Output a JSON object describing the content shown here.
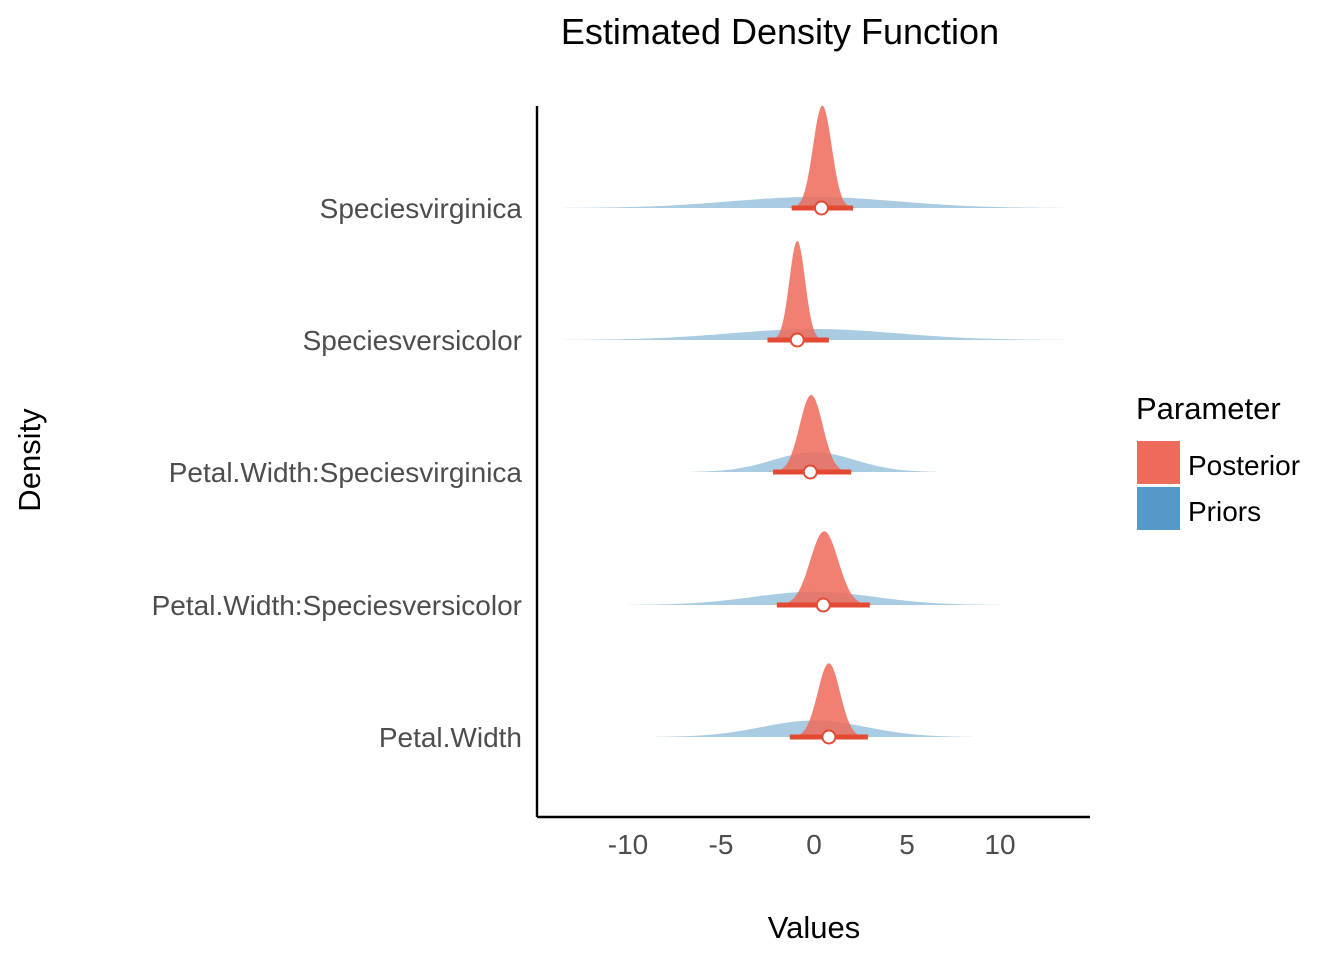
{
  "chart_data": {
    "type": "area",
    "title": "Estimated Density Function",
    "xlabel": "Values",
    "ylabel": "Density",
    "xlim": [
      -15,
      15
    ],
    "x_ticks": [
      -10,
      -5,
      0,
      5,
      10
    ],
    "x_tick_labels": [
      "-10",
      "-5",
      "0",
      "5",
      "10"
    ],
    "grid": false,
    "legend": {
      "title": "Parameter",
      "position": "right",
      "entries": [
        {
          "label": "Posterior",
          "color": "#ee6a5b"
        },
        {
          "label": "Priors",
          "color": "#5599c8"
        }
      ]
    },
    "categories": [
      "Speciesvirginica",
      "Speciesversicolor",
      "Petal.Width:Speciesvirginica",
      "Petal.Width:Speciesversicolor",
      "Petal.Width"
    ],
    "series": [
      {
        "name": "Posterior",
        "color": "#ee6a5b",
        "densities": [
          {
            "parameter": "Speciesvirginica",
            "mean": 0.45,
            "sd": 0.5,
            "peak_height": 0.93,
            "interval": [
              -1.2,
              2.1
            ],
            "point": 0.4
          },
          {
            "parameter": "Speciesversicolor",
            "mean": -0.9,
            "sd": 0.42,
            "peak_height": 0.9,
            "interval": [
              -2.5,
              0.8
            ],
            "point": -0.9
          },
          {
            "parameter": "Petal.Width:Speciesvirginica",
            "mean": -0.15,
            "sd": 0.62,
            "peak_height": 0.7,
            "interval": [
              -2.2,
              2.0
            ],
            "point": -0.2
          },
          {
            "parameter": "Petal.Width:Speciesversicolor",
            "mean": 0.55,
            "sd": 0.75,
            "peak_height": 0.67,
            "interval": [
              -2.0,
              3.0
            ],
            "point": 0.5
          },
          {
            "parameter": "Petal.Width",
            "mean": 0.8,
            "sd": 0.6,
            "peak_height": 0.67,
            "interval": [
              -1.3,
              2.9
            ],
            "point": 0.8
          }
        ]
      },
      {
        "name": "Priors",
        "color": "#5599c8",
        "densities": [
          {
            "parameter": "Speciesvirginica",
            "mean": 0,
            "sd": 4.5,
            "peak_height": 0.1,
            "range": [
              -13.5,
              13.5
            ]
          },
          {
            "parameter": "Speciesversicolor",
            "mean": 0,
            "sd": 4.5,
            "peak_height": 0.1,
            "range": [
              -13.5,
              13.5
            ]
          },
          {
            "parameter": "Petal.Width:Speciesvirginica",
            "mean": 0,
            "sd": 2.2,
            "peak_height": 0.18,
            "range": [
              -6.6,
              6.6
            ]
          },
          {
            "parameter": "Petal.Width:Speciesversicolor",
            "mean": 0,
            "sd": 3.3,
            "peak_height": 0.12,
            "range": [
              -10.0,
              10.0
            ]
          },
          {
            "parameter": "Petal.Width",
            "mean": 0,
            "sd": 2.8,
            "peak_height": 0.15,
            "range": [
              -8.5,
              8.5
            ]
          }
        ]
      }
    ]
  }
}
